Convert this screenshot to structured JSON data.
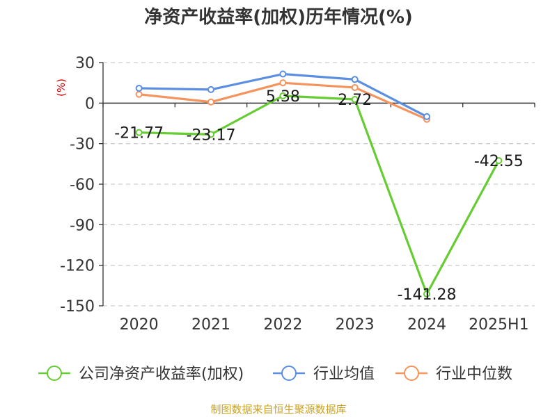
{
  "colors": {
    "company": "#66cc33",
    "industry_avg": "#5b8ee0",
    "industry_median": "#f5935d",
    "unit": "#cc0000",
    "source": "#c9a227"
  },
  "chart_data": {
    "type": "line",
    "title": "净资产收益率(加权)历年情况(%)",
    "unit_label": "(%)",
    "categories": [
      "2020",
      "2021",
      "2022",
      "2023",
      "2024",
      "2025H1"
    ],
    "ylim": [
      -150,
      30
    ],
    "yticks": [
      30,
      0,
      -30,
      -60,
      -90,
      -120,
      -150
    ],
    "grid": true,
    "legend_position": "bottom",
    "series": [
      {
        "name": "公司净资产收益率(加权)",
        "color": "#66cc33",
        "values": [
          -21.77,
          -23.17,
          5.38,
          2.72,
          -141.28,
          -42.55
        ],
        "labels": [
          "-21.77",
          "-23.17",
          "5.38",
          "2.72",
          "-141.28",
          "-42.55"
        ]
      },
      {
        "name": "行业均值",
        "color": "#5b8ee0",
        "values": [
          11,
          10,
          21.5,
          17.5,
          -10,
          null
        ]
      },
      {
        "name": "行业中位数",
        "color": "#f5935d",
        "values": [
          6.5,
          0.8,
          15,
          11.5,
          -12,
          null
        ]
      }
    ]
  },
  "legend": [
    {
      "label": "公司净资产收益率(加权)",
      "color": "#66cc33"
    },
    {
      "label": "行业均值",
      "color": "#5b8ee0"
    },
    {
      "label": "行业中位数",
      "color": "#f5935d"
    }
  ],
  "source": "制图数据来自恒生聚源数据库"
}
